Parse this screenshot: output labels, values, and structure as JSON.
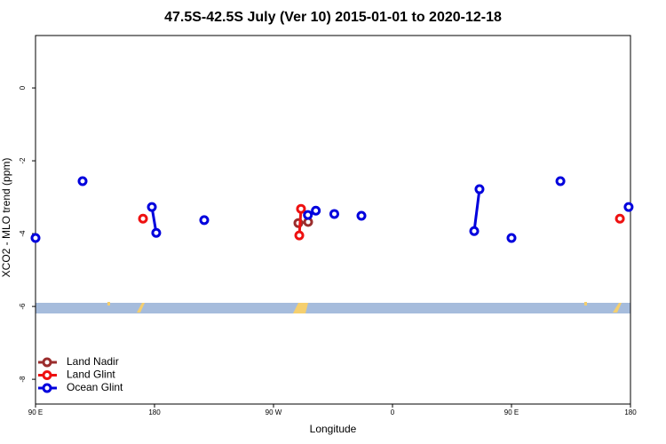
{
  "chart_data": {
    "type": "line",
    "title": "47.5S-42.5S July (Ver 10)   2015-01-01 to 2020-12-18",
    "xlabel": "Longitude",
    "ylabel": "XCO2 - MLO trend (ppm)",
    "xlim": [
      90,
      540
    ],
    "xticks": [
      {
        "value": 90,
        "label": "90 E"
      },
      180,
      {
        "value": 270,
        "label": "90 W"
      },
      {
        "value": 360,
        "label": "0"
      },
      {
        "value": 450,
        "label": "90 E"
      },
      {
        "value": 540,
        "label": "180"
      }
    ],
    "ylim": [
      -8.68,
      1.44
    ],
    "yticks": [
      0,
      -2,
      -4,
      -6,
      -8
    ],
    "legend": "bottom-left",
    "series": [
      {
        "name": "Land Nadir",
        "color": "#9b2d2d",
        "x": [
          288.8,
          296.2
        ],
        "values": [
          -3.71,
          -3.68
        ]
      },
      {
        "name": "Land Glint",
        "color": "#ee1111",
        "x": [
          171.3,
          null,
          290.8,
          289.5,
          null,
          532
        ],
        "values": [
          -3.59,
          null,
          -3.32,
          -4.05,
          null,
          -3.59
        ]
      },
      {
        "name": "Ocean Glint",
        "color": "#0000dd",
        "x": [
          90,
          null,
          125.6,
          null,
          178,
          181.3,
          null,
          217.6,
          null,
          296,
          302,
          null,
          316,
          null,
          336.5,
          null,
          421.8,
          425.8,
          null,
          450,
          null,
          487,
          null,
          538.6
        ],
        "values": [
          -4.12,
          null,
          -2.56,
          null,
          -3.27,
          -3.98,
          null,
          -3.63,
          null,
          -3.49,
          -3.37,
          null,
          -3.46,
          null,
          -3.51,
          null,
          -3.93,
          -2.78,
          null,
          -4.12,
          null,
          -2.56,
          null,
          -3.27
        ]
      }
    ]
  }
}
